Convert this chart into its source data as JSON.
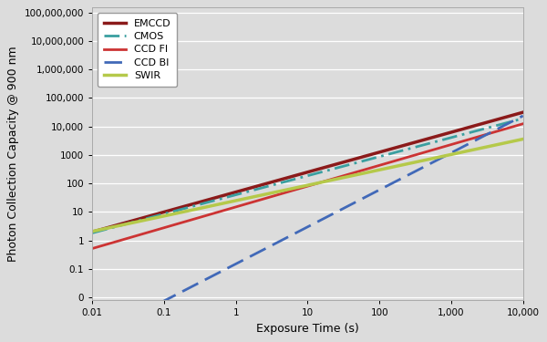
{
  "xlabel": "Exposure Time (s)",
  "ylabel": "Photon Collection Capacity @ 900 nm",
  "xlim": [
    0.01,
    10000
  ],
  "ylim_log": [
    -2,
    8
  ],
  "background_color": "#dcdcdc",
  "line_configs": [
    {
      "name": "EMCCD",
      "color": "#8B1A1A",
      "linestyle": "solid",
      "linewidth": 2.5,
      "a": 50.0,
      "b": 0.7
    },
    {
      "name": "CMOS",
      "color": "#3a9fa0",
      "linestyle": "dashdot",
      "linewidth": 2.0,
      "a": 40.0,
      "b": 0.67
    },
    {
      "name": "CCD FI",
      "color": "#cc3333",
      "linestyle": "solid",
      "linewidth": 2.0,
      "a": 15.0,
      "b": 0.73
    },
    {
      "name": "CCD BI",
      "color": "#4169b8",
      "linestyle": "dashed",
      "linewidth": 2.0,
      "a": 0.15,
      "b": 1.3
    },
    {
      "name": "SWIR",
      "color": "#b5c94a",
      "linestyle": "solid",
      "linewidth": 2.5,
      "a": 25.0,
      "b": 0.54
    }
  ],
  "yticks": [
    0.01,
    0.1,
    1,
    10,
    100,
    1000,
    10000,
    100000,
    1000000,
    10000000,
    100000000
  ],
  "ytick_labels": [
    "0",
    "0.1",
    "1",
    "10",
    "100",
    "1000",
    "10,000",
    "100,000",
    "1,000,000",
    "10,000,000",
    "100,000,000"
  ],
  "xticks": [
    0.01,
    0.1,
    1,
    10,
    100,
    1000,
    10000
  ],
  "xtick_labels": [
    "0.01",
    "0.1",
    "1",
    "10",
    "100",
    "1,000",
    "10,000"
  ],
  "legend_fontsize": 8,
  "axis_fontsize": 9,
  "tick_fontsize": 7.5
}
